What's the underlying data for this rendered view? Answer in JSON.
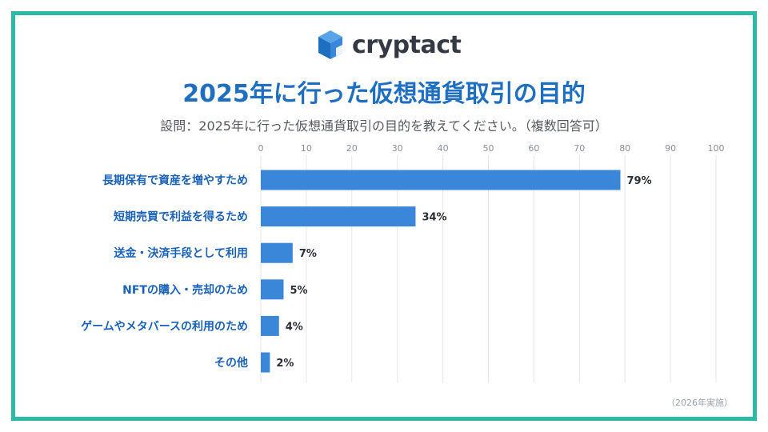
{
  "logo": {
    "text": "cryptact"
  },
  "title": "2025年に行った仮想通貨取引の目的",
  "subtitle": "設問：2025年に行った仮想通貨取引の目的を教えてください。（複数回答可）",
  "footnote": "（2026年実施）",
  "colors": {
    "bar": "#3a86d8",
    "frame": "#2bbaa6",
    "title": "#1f6fc1",
    "label": "#1a62b8"
  },
  "chart_data": {
    "type": "bar",
    "orientation": "horizontal",
    "categories": [
      "長期保有で資産を増やすため",
      "短期売買で利益を得るため",
      "送金・決済手段として利用",
      "NFTの購入・売却のため",
      "ゲームやメタバースの利用のため",
      "その他"
    ],
    "values": [
      79,
      34,
      7,
      5,
      4,
      2
    ],
    "value_labels": [
      "79%",
      "34%",
      "7%",
      "5%",
      "4%",
      "2%"
    ],
    "xlim": [
      0,
      100
    ],
    "ticks": [
      "0",
      "10",
      "20",
      "30",
      "40",
      "50",
      "60",
      "70",
      "80",
      "90",
      "100"
    ],
    "grid": true,
    "axis_position": "top"
  }
}
